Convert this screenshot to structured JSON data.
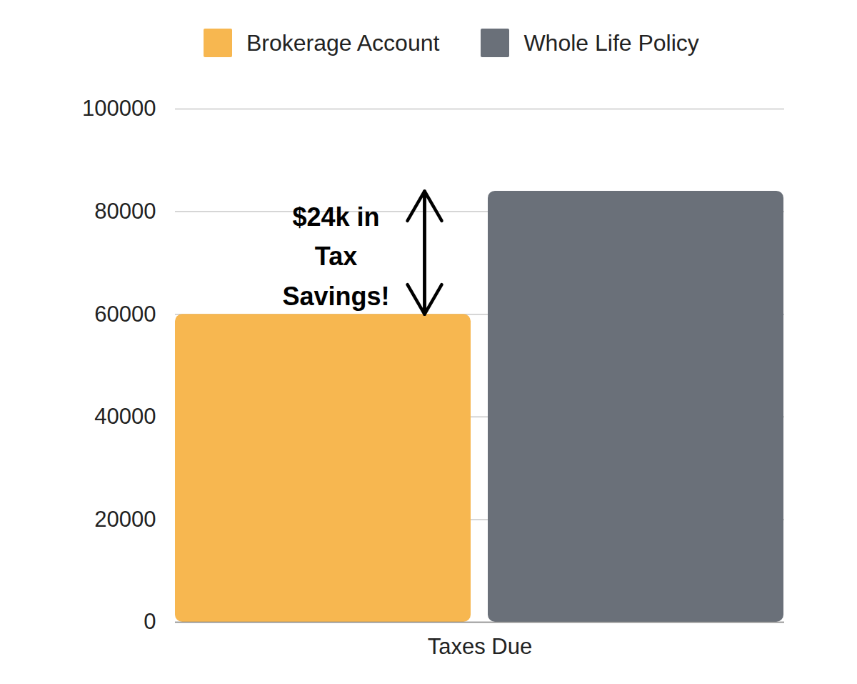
{
  "chart_data": {
    "type": "bar",
    "categories": [
      "Taxes Due"
    ],
    "series": [
      {
        "name": "Brokerage Account",
        "color": "#F7B750",
        "values": [
          60000
        ]
      },
      {
        "name": "Whole Life Policy",
        "color": "#6A7079",
        "values": [
          84000
        ]
      }
    ],
    "ylim": [
      0,
      100000
    ],
    "yticks": [
      0,
      20000,
      40000,
      60000,
      80000,
      100000
    ],
    "grid": true,
    "legend": "top",
    "annotations": [
      {
        "text": "$24k in\nTax\nSavings!"
      }
    ]
  }
}
